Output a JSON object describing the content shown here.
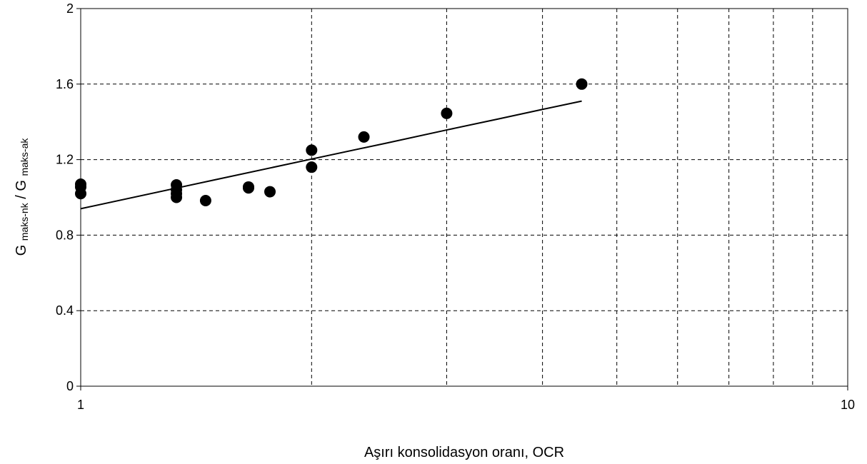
{
  "chart_data": {
    "type": "scatter",
    "xlabel": "Aşırı konsolidasyon oranı, OCR",
    "ylabel": [
      {
        "text": "G"
      },
      {
        "text": "maks-nk",
        "sub": true
      },
      {
        "text": "/ G"
      },
      {
        "text": "maks-ak",
        "sub": true
      }
    ],
    "xscale": "log",
    "xlim": [
      1,
      10
    ],
    "ylim": [
      0,
      2
    ],
    "xticks": [
      1,
      10
    ],
    "x_minor_grid": [
      2,
      3,
      4,
      5,
      6,
      7,
      8,
      9
    ],
    "yticks": [
      0,
      0.4,
      0.8,
      1.2,
      1.6,
      2
    ],
    "grid": true,
    "series": [
      {
        "type": "scatter",
        "color": "#000000",
        "x": [
          1,
          1,
          1,
          1.333,
          1.333,
          1.333,
          1.333,
          1.455,
          1.655,
          1.655,
          1.765,
          2,
          2,
          2.34,
          3,
          4.5
        ],
        "values": [
          1.07,
          1.055,
          1.02,
          1.066,
          1.04,
          1.02,
          1.0,
          0.983,
          1.055,
          1.05,
          1.03,
          1.25,
          1.16,
          1.32,
          1.445,
          1.6
        ]
      },
      {
        "type": "line",
        "color": "#000000",
        "x": [
          1,
          1.5,
          2,
          2.5,
          3,
          3.5,
          4,
          4.5
        ],
        "values": [
          0.94,
          1.094,
          1.203,
          1.287,
          1.357,
          1.415,
          1.466,
          1.51
        ]
      }
    ]
  }
}
